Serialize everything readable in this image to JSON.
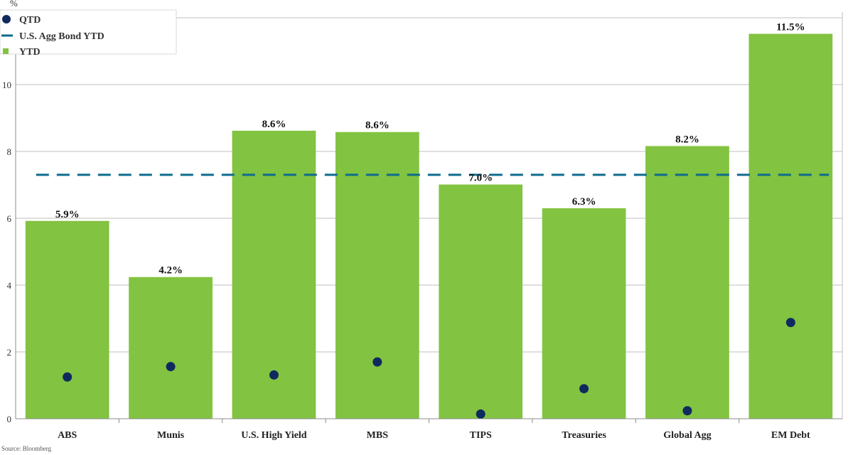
{
  "chart_data": {
    "type": "bar",
    "ylabel": "%",
    "ylim": [
      0,
      12
    ],
    "yticks": [
      0,
      2,
      4,
      6,
      8,
      10,
      12
    ],
    "grid": true,
    "legend_position": "top-left",
    "categories": [
      "ABS",
      "Munis",
      "U.S. High Yield",
      "MBS",
      "TIPS",
      "Treasuries",
      "Global Agg",
      "EM Debt"
    ],
    "series": [
      {
        "name": "YTD",
        "kind": "bar",
        "color": "#82C341",
        "values": [
          5.92,
          4.24,
          8.62,
          8.58,
          7.01,
          6.3,
          8.16,
          11.52
        ],
        "labels": [
          "5.9%",
          "4.2%",
          "8.6%",
          "8.6%",
          "7.0%",
          "6.3%",
          "8.2%",
          "11.5%"
        ]
      },
      {
        "name": "QTD",
        "kind": "scatter",
        "color": "#0F2A5E",
        "values": [
          1.25,
          1.56,
          1.31,
          1.7,
          0.14,
          0.9,
          0.24,
          2.88
        ]
      },
      {
        "name": "U.S. Agg Bond YTD",
        "kind": "line",
        "color": "#0D6B8E",
        "style": "dashed",
        "value": 7.3
      }
    ],
    "source": "Source: Bloomberg"
  }
}
